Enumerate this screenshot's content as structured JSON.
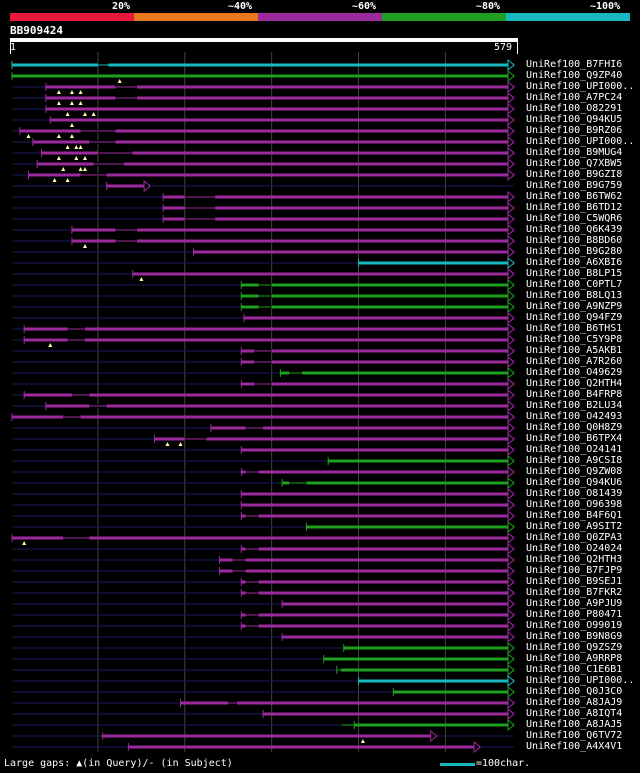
{
  "scale": {
    "labels": [
      "20%",
      "~40%",
      "~60%",
      "~80%",
      "~100%"
    ],
    "colors": [
      "#e8193c",
      "#e8781e",
      "#9c2a9c",
      "#1f9e1f",
      "#18b8c0"
    ]
  },
  "query": {
    "name": "BB909424",
    "start": "1",
    "end": "579",
    "length": 579
  },
  "colors": {
    "cyan": "#18b8c0",
    "green": "#1f9e1f",
    "purple": "#9c2a9c",
    "gap": "#1a1a60",
    "grid": "#444444"
  },
  "hits": [
    {
      "label": "UniRef100_B7FHI6",
      "color": "cyan",
      "start": 1,
      "end": 579,
      "gaps": [
        [
          100,
          112
        ]
      ],
      "markers": []
    },
    {
      "label": "UniRef100_Q9ZP40",
      "color": "green",
      "start": 1,
      "end": 579,
      "gaps": [],
      "markers": [
        125
      ]
    },
    {
      "label": "UniRef100_UPI000..",
      "color": "purple",
      "start": 40,
      "end": 579,
      "gaps": [
        [
          120,
          145
        ]
      ],
      "markers": [
        55,
        70,
        80
      ]
    },
    {
      "label": "UniRef100_A7PC24",
      "color": "purple",
      "start": 40,
      "end": 579,
      "gaps": [
        [
          120,
          145
        ]
      ],
      "markers": [
        55,
        70,
        80
      ]
    },
    {
      "label": "UniRef100_O82291",
      "color": "purple",
      "start": 40,
      "end": 579,
      "gaps": [],
      "markers": [
        65,
        85,
        95
      ]
    },
    {
      "label": "UniRef100_Q94KU5",
      "color": "purple",
      "start": 45,
      "end": 579,
      "gaps": [],
      "markers": [
        70
      ]
    },
    {
      "label": "UniRef100_B9RZ06",
      "color": "purple",
      "start": 10,
      "end": 579,
      "gaps": [
        [
          80,
          120
        ]
      ],
      "markers": [
        20,
        55,
        70
      ]
    },
    {
      "label": "UniRef100_UPI000..",
      "color": "purple",
      "start": 25,
      "end": 579,
      "gaps": [
        [
          90,
          120
        ]
      ],
      "markers": [
        65,
        75,
        80
      ]
    },
    {
      "label": "UniRef100_B9MUG4",
      "color": "purple",
      "start": 35,
      "end": 579,
      "gaps": [
        [
          100,
          140
        ]
      ],
      "markers": [
        55,
        75,
        85
      ]
    },
    {
      "label": "UniRef100_Q7XBW5",
      "color": "purple",
      "start": 30,
      "end": 579,
      "gaps": [
        [
          95,
          130
        ]
      ],
      "markers": [
        60,
        80,
        85
      ]
    },
    {
      "label": "UniRef100_B9GZI8",
      "color": "purple",
      "start": 20,
      "end": 579,
      "gaps": [
        [
          80,
          110
        ]
      ],
      "markers": [
        50,
        65
      ]
    },
    {
      "label": "UniRef100_B9G759",
      "color": "purple",
      "start": 110,
      "end": 160,
      "gaps": [],
      "markers": []
    },
    {
      "label": "UniRef100_B6TW62",
      "color": "purple",
      "start": 175,
      "end": 579,
      "gaps": [
        [
          200,
          235
        ]
      ],
      "markers": []
    },
    {
      "label": "UniRef100_B6TD12",
      "color": "purple",
      "start": 175,
      "end": 579,
      "gaps": [
        [
          200,
          235
        ]
      ],
      "markers": []
    },
    {
      "label": "UniRef100_C5WQR6",
      "color": "purple",
      "start": 175,
      "end": 579,
      "gaps": [
        [
          200,
          235
        ]
      ],
      "markers": []
    },
    {
      "label": "UniRef100_Q6K439",
      "color": "purple",
      "start": 70,
      "end": 579,
      "gaps": [
        [
          120,
          145
        ]
      ],
      "markers": []
    },
    {
      "label": "UniRef100_B8BD60",
      "color": "purple",
      "start": 70,
      "end": 579,
      "gaps": [
        [
          120,
          145
        ]
      ],
      "markers": [
        85
      ]
    },
    {
      "label": "UniRef100_B9G280",
      "color": "purple",
      "start": 210,
      "end": 579,
      "gaps": [],
      "markers": []
    },
    {
      "label": "UniRef100_A6XBI6",
      "color": "cyan",
      "start": 400,
      "end": 579,
      "gaps": [],
      "markers": []
    },
    {
      "label": "UniRef100_B8LP15",
      "color": "purple",
      "start": 140,
      "end": 579,
      "gaps": [],
      "markers": [
        150
      ]
    },
    {
      "label": "UniRef100_C0PTL7",
      "color": "green",
      "start": 265,
      "end": 579,
      "gaps": [
        [
          285,
          300
        ]
      ],
      "markers": []
    },
    {
      "label": "UniRef100_B8LQ13",
      "color": "green",
      "start": 265,
      "end": 579,
      "gaps": [
        [
          285,
          300
        ]
      ],
      "markers": []
    },
    {
      "label": "UniRef100_A9NZP9",
      "color": "green",
      "start": 265,
      "end": 579,
      "gaps": [
        [
          285,
          300
        ]
      ],
      "markers": []
    },
    {
      "label": "UniRef100_Q94FZ9",
      "color": "purple",
      "start": 268,
      "end": 579,
      "gaps": [],
      "markers": []
    },
    {
      "label": "UniRef100_B6THS1",
      "color": "purple",
      "start": 15,
      "end": 579,
      "gaps": [
        [
          65,
          85
        ]
      ],
      "markers": []
    },
    {
      "label": "UniRef100_C5Y9P8",
      "color": "purple",
      "start": 15,
      "end": 579,
      "gaps": [
        [
          65,
          85
        ]
      ],
      "markers": [
        45
      ]
    },
    {
      "label": "UniRef100_A5AKB1",
      "color": "purple",
      "start": 265,
      "end": 579,
      "gaps": [
        [
          280,
          300
        ]
      ],
      "markers": []
    },
    {
      "label": "UniRef100_A7R260",
      "color": "purple",
      "start": 265,
      "end": 579,
      "gaps": [
        [
          280,
          300
        ]
      ],
      "markers": []
    },
    {
      "label": "UniRef100_O49629",
      "color": "green",
      "start": 310,
      "end": 579,
      "gaps": [
        [
          320,
          335
        ]
      ],
      "markers": []
    },
    {
      "label": "UniRef100_Q2HTH4",
      "color": "purple",
      "start": 265,
      "end": 579,
      "gaps": [
        [
          280,
          300
        ]
      ],
      "markers": []
    },
    {
      "label": "UniRef100_B4FRP8",
      "color": "purple",
      "start": 15,
      "end": 579,
      "gaps": [
        [
          70,
          90
        ]
      ],
      "markers": []
    },
    {
      "label": "UniRef100_B2LU34",
      "color": "purple",
      "start": 40,
      "end": 579,
      "gaps": [
        [
          90,
          110
        ]
      ],
      "markers": []
    },
    {
      "label": "UniRef100_O42493",
      "color": "purple",
      "start": 1,
      "end": 579,
      "gaps": [
        [
          60,
          80
        ]
      ],
      "markers": []
    },
    {
      "label": "UniRef100_Q0H8Z9",
      "color": "purple",
      "start": 230,
      "end": 579,
      "gaps": [
        [
          270,
          290
        ]
      ],
      "markers": []
    },
    {
      "label": "UniRef100_B6TPX4",
      "color": "purple",
      "start": 165,
      "end": 579,
      "gaps": [
        [
          200,
          225
        ]
      ],
      "markers": [
        180,
        195
      ]
    },
    {
      "label": "UniRef100_O24141",
      "color": "purple",
      "start": 265,
      "end": 579,
      "gaps": [],
      "markers": []
    },
    {
      "label": "UniRef100_A9CSI8",
      "color": "green",
      "start": 365,
      "end": 579,
      "gaps": [],
      "markers": []
    },
    {
      "label": "UniRef100_Q9ZW08",
      "color": "purple",
      "start": 265,
      "end": 579,
      "gaps": [
        [
          270,
          285
        ]
      ],
      "markers": []
    },
    {
      "label": "UniRef100_Q94KU6",
      "color": "green",
      "start": 312,
      "end": 579,
      "gaps": [
        [
          320,
          340
        ]
      ],
      "markers": []
    },
    {
      "label": "UniRef100_O81439",
      "color": "purple",
      "start": 265,
      "end": 579,
      "gaps": [],
      "markers": []
    },
    {
      "label": "UniRef100_O96398",
      "color": "purple",
      "start": 265,
      "end": 579,
      "gaps": [],
      "markers": []
    },
    {
      "label": "UniRef100_B4F6Q1",
      "color": "purple",
      "start": 265,
      "end": 579,
      "gaps": [
        [
          270,
          285
        ]
      ],
      "markers": []
    },
    {
      "label": "UniRef100_A9SIT2",
      "color": "green",
      "start": 340,
      "end": 579,
      "gaps": [],
      "markers": []
    },
    {
      "label": "UniRef100_Q0ZPA3",
      "color": "purple",
      "start": 1,
      "end": 579,
      "gaps": [
        [
          60,
          90
        ]
      ],
      "markers": [
        15
      ]
    },
    {
      "label": "UniRef100_O24024",
      "color": "purple",
      "start": 265,
      "end": 579,
      "gaps": [
        [
          270,
          285
        ]
      ],
      "markers": []
    },
    {
      "label": "UniRef100_Q2HTH3",
      "color": "purple",
      "start": 240,
      "end": 579,
      "gaps": [
        [
          255,
          270
        ]
      ],
      "markers": []
    },
    {
      "label": "UniRef100_B7FJP9",
      "color": "purple",
      "start": 240,
      "end": 579,
      "gaps": [
        [
          255,
          270
        ]
      ],
      "markers": []
    },
    {
      "label": "UniRef100_B9SEJ1",
      "color": "purple",
      "start": 265,
      "end": 579,
      "gaps": [
        [
          270,
          285
        ]
      ],
      "markers": []
    },
    {
      "label": "UniRef100_B7FKR2",
      "color": "purple",
      "start": 265,
      "end": 579,
      "gaps": [
        [
          270,
          285
        ]
      ],
      "markers": []
    },
    {
      "label": "UniRef100_A9PJU9",
      "color": "purple",
      "start": 312,
      "end": 579,
      "gaps": [],
      "markers": []
    },
    {
      "label": "UniRef100_P80471",
      "color": "purple",
      "start": 265,
      "end": 579,
      "gaps": [
        [
          270,
          285
        ]
      ],
      "markers": []
    },
    {
      "label": "UniRef100_O99019",
      "color": "purple",
      "start": 265,
      "end": 579,
      "gaps": [
        [
          270,
          285
        ]
      ],
      "markers": []
    },
    {
      "label": "UniRef100_B9N8G9",
      "color": "purple",
      "start": 312,
      "end": 579,
      "gaps": [],
      "markers": []
    },
    {
      "label": "UniRef100_Q9ZSZ9",
      "color": "green",
      "start": 383,
      "end": 579,
      "gaps": [],
      "markers": []
    },
    {
      "label": "UniRef100_A9RRP8",
      "color": "green",
      "start": 360,
      "end": 579,
      "gaps": [],
      "markers": []
    },
    {
      "label": "UniRef100_C1E6B1",
      "color": "green",
      "start": 375,
      "end": 579,
      "gaps": [
        [
          375,
          380
        ]
      ],
      "markers": []
    },
    {
      "label": "UniRef100_UPI000..",
      "color": "cyan",
      "start": 400,
      "end": 579,
      "gaps": [],
      "markers": []
    },
    {
      "label": "UniRef100_Q0J3C0",
      "color": "green",
      "start": 440,
      "end": 579,
      "gaps": [],
      "markers": []
    },
    {
      "label": "UniRef100_A8JAJ9",
      "color": "purple",
      "start": 195,
      "end": 579,
      "gaps": [
        [
          250,
          260
        ]
      ],
      "markers": []
    },
    {
      "label": "UniRef100_A8IQT4",
      "color": "purple",
      "start": 290,
      "end": 579,
      "gaps": [],
      "markers": []
    },
    {
      "label": "UniRef100_A8JAJ5",
      "color": "green",
      "start": 395,
      "end": 579,
      "gaps": [
        [
          380,
          395
        ]
      ],
      "markers": []
    },
    {
      "label": "UniRef100_Q6TV72",
      "color": "purple",
      "start": 105,
      "end": 490,
      "gaps": [],
      "markers": [
        405
      ]
    },
    {
      "label": "UniRef100_A4X4V1",
      "color": "purple",
      "start": 135,
      "end": 540,
      "gaps": [],
      "markers": []
    }
  ],
  "legend": {
    "left": "Large gaps: ▲(in Query)/- (in Subject)",
    "right": "=100char."
  }
}
